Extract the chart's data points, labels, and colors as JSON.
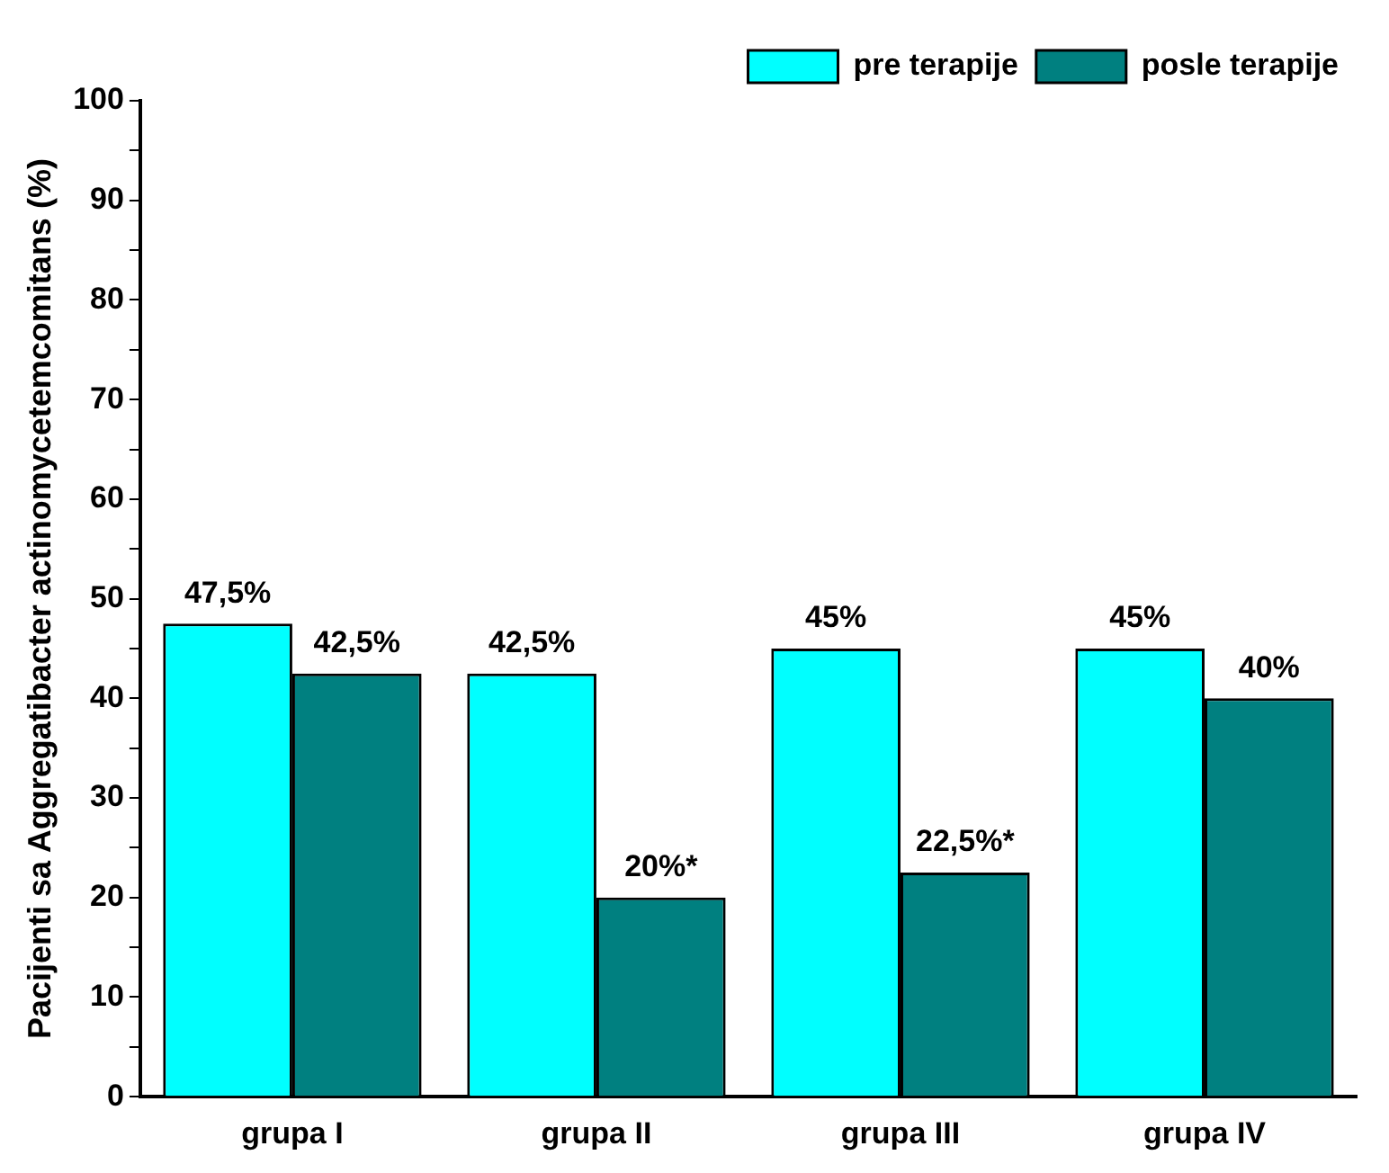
{
  "chart_data": {
    "type": "bar",
    "ylabel": "Pacijenti sa Aggregatibacter actinomycetemcomitans (%)",
    "categories": [
      "grupa I",
      "grupa II",
      "grupa III",
      "grupa IV"
    ],
    "series": [
      {
        "name": "pre terapije",
        "color": "#00ffff",
        "values": [
          47.5,
          42.5,
          45,
          45
        ],
        "value_labels": [
          "47,5%",
          "42,5%",
          "45%",
          "45%"
        ]
      },
      {
        "name": "posle terapije",
        "color": "#008080",
        "values": [
          42.5,
          20,
          22.5,
          40
        ],
        "value_labels": [
          "42,5%",
          "20%*",
          "22,5%*",
          "40%"
        ]
      }
    ],
    "ylim": [
      0,
      100
    ],
    "yticks": [
      0,
      {
        "value": 5,
        "label": null
      },
      10,
      {
        "value": 15,
        "label": null
      },
      20,
      {
        "value": 25,
        "label": null
      },
      30,
      {
        "value": 35,
        "label": null
      },
      40,
      {
        "value": 45,
        "label": null
      },
      50,
      {
        "value": 55,
        "label": null
      },
      60,
      {
        "value": 65,
        "label": null
      },
      70,
      {
        "value": 75,
        "label": null
      },
      80,
      {
        "value": 85,
        "label": null
      },
      90,
      {
        "value": 95,
        "label": null
      },
      100
    ],
    "grid": false,
    "legend": "top right"
  }
}
